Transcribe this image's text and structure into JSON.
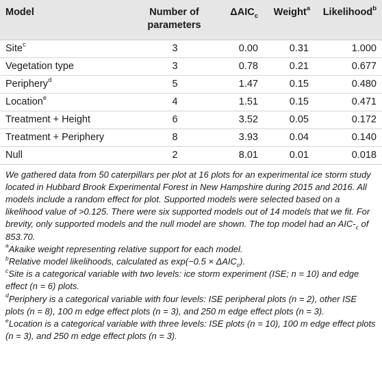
{
  "header": {
    "model": "Model",
    "num_params_line1": "Number of",
    "num_params_line2": "parameters",
    "delta_aic": "ΔAIC",
    "delta_aic_sub": "c",
    "weight": "Weight",
    "weight_sup": "a",
    "likelihood": "Likelihood",
    "likelihood_sup": "b"
  },
  "rows": [
    {
      "model": "Site",
      "sup": "c",
      "params": "3",
      "delta_aic": "0.00",
      "weight": "0.31",
      "likelihood": "1.000"
    },
    {
      "model": "Vegetation type",
      "sup": "",
      "params": "3",
      "delta_aic": "0.78",
      "weight": "0.21",
      "likelihood": "0.677"
    },
    {
      "model": "Periphery",
      "sup": "d",
      "params": "5",
      "delta_aic": "1.47",
      "weight": "0.15",
      "likelihood": "0.480"
    },
    {
      "model": "Location",
      "sup": "e",
      "params": "4",
      "delta_aic": "1.51",
      "weight": "0.15",
      "likelihood": "0.471"
    },
    {
      "model": "Treatment + Height",
      "sup": "",
      "params": "6",
      "delta_aic": "3.52",
      "weight": "0.05",
      "likelihood": "0.172"
    },
    {
      "model": "Treatment + Periphery",
      "sup": "",
      "params": "8",
      "delta_aic": "3.93",
      "weight": "0.04",
      "likelihood": "0.140"
    },
    {
      "model": "Null",
      "sup": "",
      "params": "2",
      "delta_aic": "8.01",
      "weight": "0.01",
      "likelihood": "0.018"
    }
  ],
  "notes": {
    "main_a": "We gathered data from 50 caterpillars per plot at 16 plots for an experimental ice storm study located in Hubbard Brook Experimental Forest in New Hampshire during 2015 and 2016. All models include a random effect for plot. Supported models were selected based on a likelihood value of ",
    "main_threshold": ">0.125",
    "main_b": ". There were six supported models out of 14 models that we fit. For brevity, only supported models and the null model are shown. The top model had an AIC-",
    "main_sub": "c",
    "main_c": " of 853.70.",
    "a_mark": "a",
    "a_text": "Akaike weight representing relative support for each model.",
    "b_mark": "b",
    "b_text_a": "Relative model likelihoods, calculated as exp(−0.5 × ΔAIC",
    "b_sub": "c",
    "b_text_b": ").",
    "c_mark": "c",
    "c_text": "Site is a categorical variable with two levels: ice storm experiment (ISE; n = 10) and edge effect (n = 6) plots.",
    "d_mark": "d",
    "d_text": "Periphery is a categorical variable with four levels: ISE peripheral plots (n = 2), other ISE plots (n = 8), 100 m edge effect plots (n = 3), and 250 m edge effect plots (n = 3).",
    "e_mark": "e",
    "e_text": "Location is a categorical variable with three levels: ISE plots (n = 10), 100 m edge effect plots (n = 3), and 250 m edge effect plots (n = 3)."
  }
}
